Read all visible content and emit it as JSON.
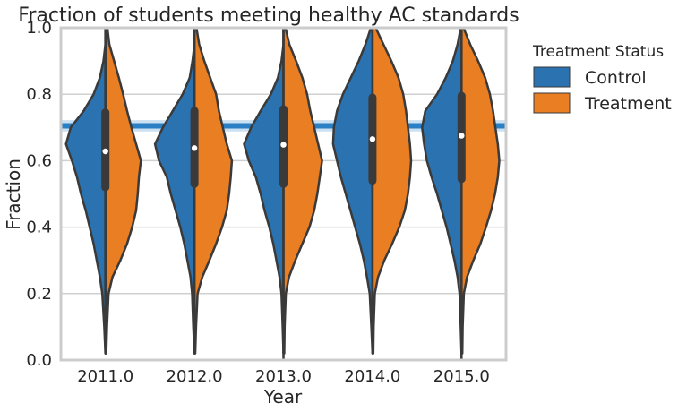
{
  "chart_data": {
    "type": "violin",
    "title": "Fraction of students meeting healthy AC standards",
    "xlabel": "Year",
    "ylabel": "Fraction",
    "categories": [
      "2011.0",
      "2012.0",
      "2013.0",
      "2014.0",
      "2015.0"
    ],
    "ylim": [
      0,
      1
    ],
    "yticks": [
      "0.0",
      "0.2",
      "0.4",
      "0.6",
      "0.8",
      "1.0"
    ],
    "grid": "horizontal",
    "split": true,
    "legend": {
      "title": "Treatment Status",
      "placement": "outside-right",
      "entries": [
        {
          "name": "Control",
          "color": "#2b73b0"
        },
        {
          "name": "Treatment",
          "color": "#ea7e22"
        }
      ]
    },
    "reference_line": {
      "value": 0.705,
      "band": [
        0.688,
        0.722
      ],
      "color": "#2b7fc4"
    },
    "series": [
      {
        "name": "Control",
        "color": "#2b73b0"
      },
      {
        "name": "Treatment",
        "color": "#ea7e22"
      }
    ],
    "box_stats": [
      {
        "year": "2011.0",
        "q1": 0.52,
        "median": 0.628,
        "q3": 0.745,
        "whisker_low": 0.04,
        "whisker_high": 1.0
      },
      {
        "year": "2012.0",
        "q1": 0.53,
        "median": 0.638,
        "q3": 0.75,
        "whisker_low": 0.03,
        "whisker_high": 1.0
      },
      {
        "year": "2013.0",
        "q1": 0.53,
        "median": 0.648,
        "q3": 0.755,
        "whisker_low": 0.0,
        "whisker_high": 1.0
      },
      {
        "year": "2014.0",
        "q1": 0.54,
        "median": 0.665,
        "q3": 0.79,
        "whisker_low": 0.05,
        "whisker_high": 1.0
      },
      {
        "year": "2015.0",
        "q1": 0.545,
        "median": 0.675,
        "q3": 0.795,
        "whisker_low": 0.0,
        "whisker_high": 1.0
      }
    ],
    "density_profiles": {
      "y": [
        0.02,
        0.1,
        0.2,
        0.25,
        0.3,
        0.35,
        0.4,
        0.45,
        0.5,
        0.55,
        0.6,
        0.65,
        0.7,
        0.75,
        0.8,
        0.85,
        0.9,
        0.95,
        1.0
      ],
      "2011.0": {
        "control": [
          0.0,
          0.03,
          0.08,
          0.14,
          0.22,
          0.3,
          0.4,
          0.5,
          0.62,
          0.72,
          0.85,
          1.0,
          0.88,
          0.55,
          0.3,
          0.14,
          0.05,
          0.0,
          0.0
        ],
        "treatment": [
          0.02,
          0.04,
          0.08,
          0.18,
          0.38,
          0.55,
          0.68,
          0.78,
          0.82,
          0.85,
          0.9,
          0.78,
          0.66,
          0.55,
          0.45,
          0.34,
          0.22,
          0.1,
          0.05
        ]
      },
      "2012.0": {
        "control": [
          0.0,
          0.03,
          0.06,
          0.1,
          0.18,
          0.26,
          0.36,
          0.48,
          0.6,
          0.7,
          0.9,
          1.0,
          0.8,
          0.55,
          0.3,
          0.12,
          0.05,
          0.0,
          0.0
        ],
        "treatment": [
          0.02,
          0.04,
          0.08,
          0.2,
          0.38,
          0.55,
          0.7,
          0.82,
          0.88,
          0.92,
          0.95,
          0.82,
          0.72,
          0.62,
          0.55,
          0.4,
          0.25,
          0.12,
          0.05
        ]
      },
      "2013.0": {
        "control": [
          0.0,
          0.02,
          0.05,
          0.1,
          0.18,
          0.26,
          0.36,
          0.48,
          0.58,
          0.7,
          0.88,
          1.0,
          0.82,
          0.58,
          0.32,
          0.14,
          0.05,
          0.0,
          0.0
        ],
        "treatment": [
          0.02,
          0.03,
          0.06,
          0.14,
          0.3,
          0.48,
          0.66,
          0.78,
          0.86,
          0.92,
          0.98,
          0.88,
          0.78,
          0.68,
          0.6,
          0.48,
          0.32,
          0.15,
          0.05
        ]
      },
      "2014.0": {
        "control": [
          0.0,
          0.03,
          0.07,
          0.14,
          0.22,
          0.32,
          0.44,
          0.56,
          0.68,
          0.8,
          0.9,
          1.0,
          0.98,
          0.9,
          0.75,
          0.55,
          0.35,
          0.18,
          0.04
        ],
        "treatment": [
          0.02,
          0.03,
          0.06,
          0.14,
          0.3,
          0.5,
          0.68,
          0.82,
          0.9,
          0.95,
          0.98,
          0.95,
          0.9,
          0.85,
          0.78,
          0.66,
          0.48,
          0.28,
          0.08
        ]
      },
      "2015.0": {
        "control": [
          0.0,
          0.02,
          0.05,
          0.1,
          0.18,
          0.28,
          0.38,
          0.5,
          0.62,
          0.76,
          0.88,
          0.95,
          1.0,
          0.92,
          0.62,
          0.4,
          0.22,
          0.1,
          0.02
        ],
        "treatment": [
          0.02,
          0.03,
          0.06,
          0.14,
          0.3,
          0.48,
          0.62,
          0.75,
          0.85,
          0.92,
          0.96,
          0.92,
          0.86,
          0.8,
          0.72,
          0.6,
          0.42,
          0.22,
          0.05
        ]
      }
    }
  }
}
